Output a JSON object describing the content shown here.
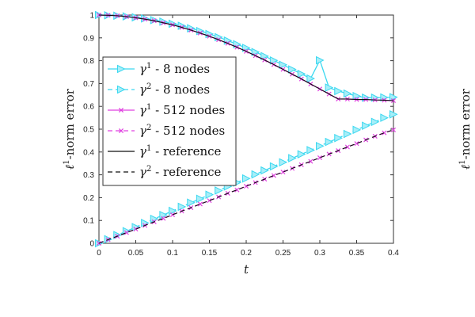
{
  "chart_data": {
    "type": "line",
    "xlabel": "t",
    "ylabel": "ℓ1-norm error",
    "ylabel_parts": [
      "ℓ",
      "1",
      "-norm error"
    ],
    "xlim": [
      0,
      0.4
    ],
    "ylim": [
      0,
      1
    ],
    "x_ticks": [
      "0",
      "0.05",
      "0.1",
      "0.15",
      "0.2",
      "0.25",
      "0.3",
      "0.35",
      "0.4"
    ],
    "y_ticks": [
      "0",
      "0.1",
      "0.2",
      "0.3",
      "0.4",
      "0.5",
      "0.6",
      "0.7",
      "0.8",
      "0.9",
      "1"
    ],
    "grid": false,
    "legend_position": "center-left",
    "x": [
      0,
      0.0125,
      0.025,
      0.0375,
      0.05,
      0.0625,
      0.075,
      0.0875,
      0.1,
      0.1125,
      0.125,
      0.1375,
      0.15,
      0.1625,
      0.175,
      0.1875,
      0.2,
      0.2125,
      0.225,
      0.2375,
      0.25,
      0.2625,
      0.275,
      0.2875,
      0.3,
      0.3125,
      0.325,
      0.3375,
      0.35,
      0.3625,
      0.375,
      0.3875,
      0.4
    ],
    "series": [
      {
        "name_parts": [
          "γ",
          "1",
          " - 8 nodes"
        ],
        "color": "#3ad8f0",
        "dash": "solid",
        "marker": "triangle-right",
        "y": [
          1.0,
          0.999,
          0.997,
          0.994,
          0.99,
          0.985,
          0.978,
          0.971,
          0.962,
          0.953,
          0.942,
          0.93,
          0.917,
          0.903,
          0.888,
          0.872,
          0.856,
          0.838,
          0.82,
          0.801,
          0.782,
          0.762,
          0.742,
          0.722,
          0.802,
          0.682,
          0.667,
          0.656,
          0.645,
          0.638,
          0.638,
          0.639,
          0.64
        ]
      },
      {
        "name_parts": [
          "γ",
          "2",
          " - 8 nodes"
        ],
        "color": "#3ad8f0",
        "dash": "dashed",
        "marker": "triangle-right",
        "y": [
          0.0,
          0.018,
          0.036,
          0.053,
          0.071,
          0.089,
          0.107,
          0.124,
          0.142,
          0.16,
          0.178,
          0.195,
          0.213,
          0.231,
          0.249,
          0.266,
          0.284,
          0.302,
          0.319,
          0.337,
          0.355,
          0.373,
          0.39,
          0.408,
          0.426,
          0.444,
          0.461,
          0.479,
          0.497,
          0.515,
          0.532,
          0.55,
          0.565
        ]
      },
      {
        "name_parts": [
          "γ",
          "1",
          " - 512 nodes"
        ],
        "color": "#e040e0",
        "dash": "solid",
        "marker": "x",
        "y": [
          1.0,
          0.999,
          0.997,
          0.993,
          0.988,
          0.982,
          0.975,
          0.966,
          0.957,
          0.946,
          0.934,
          0.921,
          0.907,
          0.892,
          0.876,
          0.859,
          0.841,
          0.822,
          0.803,
          0.783,
          0.762,
          0.741,
          0.72,
          0.698,
          0.676,
          0.654,
          0.632,
          0.632,
          0.63,
          0.63,
          0.628,
          0.627,
          0.625
        ]
      },
      {
        "name_parts": [
          "γ",
          "2",
          " - 512 nodes"
        ],
        "color": "#e040e0",
        "dash": "dashed",
        "marker": "x",
        "y": [
          0.0,
          0.016,
          0.031,
          0.047,
          0.062,
          0.078,
          0.094,
          0.109,
          0.125,
          0.141,
          0.156,
          0.172,
          0.187,
          0.203,
          0.219,
          0.234,
          0.25,
          0.266,
          0.281,
          0.297,
          0.312,
          0.328,
          0.344,
          0.359,
          0.375,
          0.391,
          0.406,
          0.422,
          0.437,
          0.453,
          0.469,
          0.484,
          0.497
        ]
      },
      {
        "name_parts": [
          "γ",
          "1",
          " - reference"
        ],
        "color": "#111111",
        "dash": "solid",
        "marker": "none",
        "y": [
          1.0,
          0.999,
          0.997,
          0.993,
          0.988,
          0.982,
          0.975,
          0.966,
          0.957,
          0.946,
          0.934,
          0.921,
          0.907,
          0.892,
          0.876,
          0.859,
          0.841,
          0.822,
          0.803,
          0.783,
          0.762,
          0.741,
          0.72,
          0.698,
          0.676,
          0.654,
          0.632,
          0.632,
          0.63,
          0.63,
          0.628,
          0.627,
          0.625
        ]
      },
      {
        "name_parts": [
          "γ",
          "2",
          " - reference"
        ],
        "color": "#111111",
        "dash": "dashed",
        "marker": "none",
        "y": [
          0.0,
          0.016,
          0.031,
          0.047,
          0.062,
          0.078,
          0.094,
          0.109,
          0.125,
          0.141,
          0.156,
          0.172,
          0.187,
          0.203,
          0.219,
          0.234,
          0.25,
          0.266,
          0.281,
          0.297,
          0.312,
          0.328,
          0.344,
          0.359,
          0.375,
          0.391,
          0.406,
          0.422,
          0.437,
          0.453,
          0.469,
          0.484,
          0.497
        ]
      }
    ]
  },
  "partial_labels": {
    "right_ylabel_parts": [
      "ℓ",
      "1",
      "-norm error"
    ]
  }
}
